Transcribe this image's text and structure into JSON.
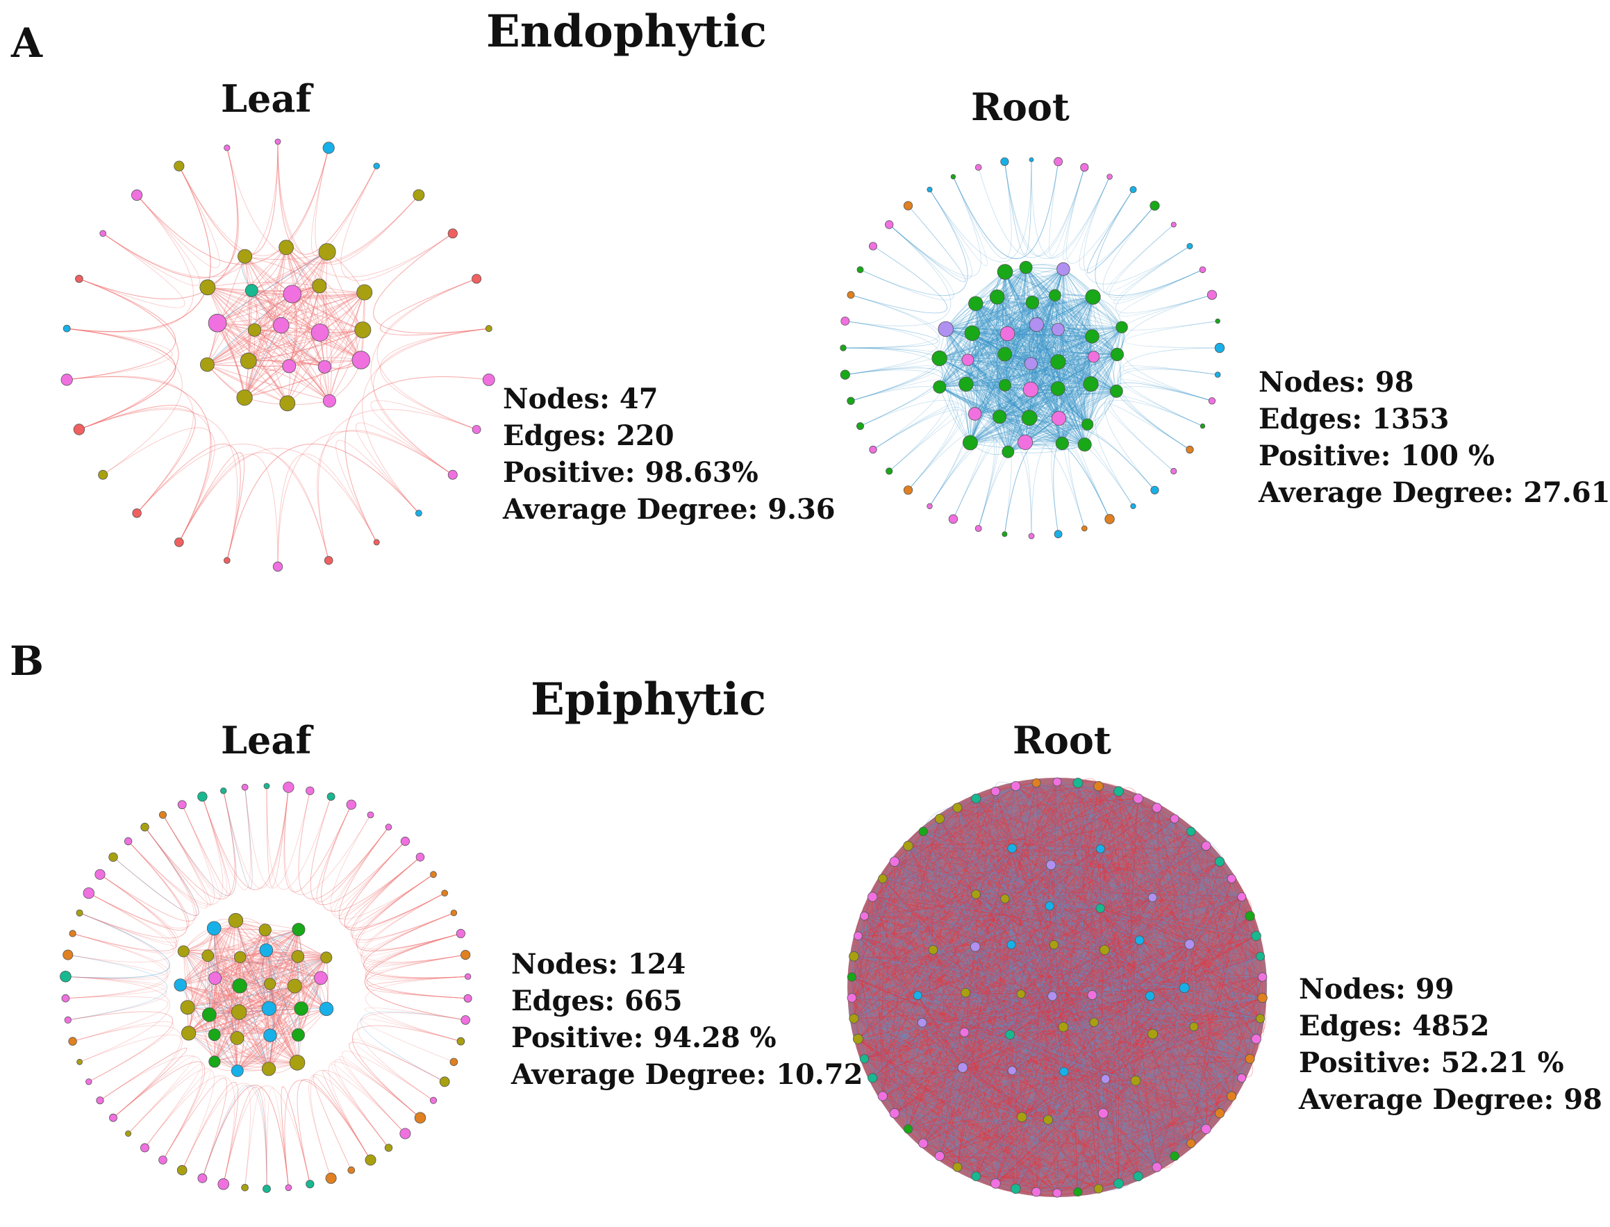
{
  "panels": {
    "a": {
      "letter": "A",
      "title": "Endophytic",
      "leaf": {
        "title": "Leaf",
        "edge_color": "#f4a0a0",
        "nodes_line": "Nodes: 47",
        "edges_line": "Edges: 220",
        "positive_line": "Positive: 98.63%",
        "degree_line": "Average Degree: 9.36"
      },
      "root": {
        "title": "Root",
        "edge_color": "#2f93c8",
        "nodes_line": "Nodes: 98",
        "edges_line": "Edges: 1353",
        "positive_line": "Positive: 100 %",
        "degree_line": "Average Degree: 27.61"
      }
    },
    "b": {
      "letter": "B",
      "title": "Epiphytic",
      "leaf": {
        "title": "Leaf",
        "edge_color": "#f4a0a0",
        "nodes_line": "Nodes: 124",
        "edges_line": "Edges: 665",
        "positive_line": "Positive: 94.28 %",
        "degree_line": "Average Degree: 10.72"
      },
      "root": {
        "title": "Root",
        "edge_color": "#c0454f",
        "nodes_line": "Nodes: 99",
        "edges_line": "Edges: 4852",
        "positive_line": "Positive: 52.21 %",
        "degree_line": "Average Degree: 98"
      }
    }
  },
  "colors": {
    "positive_edge": "#f07070",
    "negative_edge": "#3a95c9",
    "node_pink": "#f070e0",
    "node_olive": "#a8a010",
    "node_green": "#18a818",
    "node_teal": "#18b890",
    "node_cyan": "#18b0e8",
    "node_orange": "#e08020",
    "node_salmon": "#f06060",
    "node_lavender": "#b090f0"
  }
}
